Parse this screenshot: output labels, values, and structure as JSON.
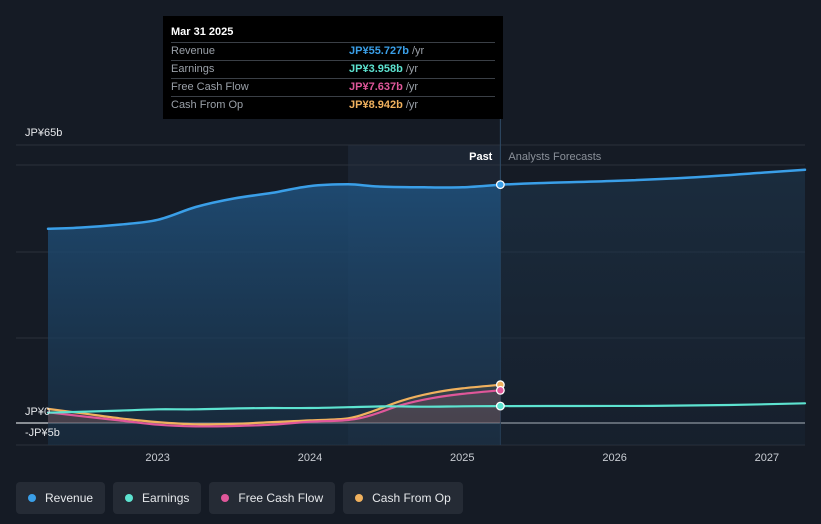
{
  "tooltip": {
    "date": "Mar 31 2025",
    "rows": [
      {
        "label": "Revenue",
        "value": "JP¥55.727b",
        "unit": "/yr",
        "color": "#3a9fe8"
      },
      {
        "label": "Earnings",
        "value": "JP¥3.958b",
        "unit": "/yr",
        "color": "#5de3d0"
      },
      {
        "label": "Free Cash Flow",
        "value": "JP¥7.637b",
        "unit": "/yr",
        "color": "#e0579a"
      },
      {
        "label": "Cash From Op",
        "value": "JP¥8.942b",
        "unit": "/yr",
        "color": "#f0b15e"
      }
    ]
  },
  "legend": [
    {
      "label": "Revenue",
      "color": "#3a9fe8"
    },
    {
      "label": "Earnings",
      "color": "#5de3d0"
    },
    {
      "label": "Free Cash Flow",
      "color": "#e0579a"
    },
    {
      "label": "Cash From Op",
      "color": "#f0b15e"
    }
  ],
  "chart_data": {
    "type": "line",
    "y_label_top": "JP¥65b",
    "y_label_zero": "JP¥0",
    "y_label_bottom": "-JP¥5b",
    "ylim": [
      -5,
      65
    ],
    "xlim": [
      2022.28,
      2027.25
    ],
    "past_label": "Past",
    "forecast_label": "Analysts Forecasts",
    "past_start": 2024.25,
    "divider_x": 2025.25,
    "x_ticks": [
      {
        "v": 2023,
        "label": "2023"
      },
      {
        "v": 2024,
        "label": "2024"
      },
      {
        "v": 2025,
        "label": "2025"
      },
      {
        "v": 2026,
        "label": "2026"
      },
      {
        "v": 2027,
        "label": "2027"
      }
    ],
    "series": [
      {
        "name": "Revenue",
        "color": "#3a9fe8",
        "fill": true,
        "points": [
          [
            2022.28,
            45.4
          ],
          [
            2022.5,
            45.7
          ],
          [
            2022.75,
            46.4
          ],
          [
            2023.0,
            47.5
          ],
          [
            2023.25,
            50.5
          ],
          [
            2023.5,
            52.5
          ],
          [
            2023.75,
            53.8
          ],
          [
            2024.0,
            55.4
          ],
          [
            2024.25,
            55.8
          ],
          [
            2024.45,
            55.3
          ],
          [
            2024.75,
            55.1
          ],
          [
            2025.0,
            55.1
          ],
          [
            2025.25,
            55.727
          ]
        ],
        "forecast": [
          [
            2025.25,
            55.727
          ],
          [
            2025.5,
            56.1
          ],
          [
            2026.0,
            56.6
          ],
          [
            2026.5,
            57.4
          ],
          [
            2027.0,
            58.6
          ],
          [
            2027.25,
            59.2
          ]
        ]
      },
      {
        "name": "Earnings",
        "color": "#5de3d0",
        "fill": false,
        "points": [
          [
            2022.28,
            2.4
          ],
          [
            2022.75,
            2.9
          ],
          [
            2023.0,
            3.2
          ],
          [
            2023.25,
            3.2
          ],
          [
            2023.5,
            3.4
          ],
          [
            2023.75,
            3.5
          ],
          [
            2024.0,
            3.5
          ],
          [
            2024.25,
            3.7
          ],
          [
            2024.5,
            3.9
          ],
          [
            2024.75,
            3.8
          ],
          [
            2025.0,
            3.9
          ],
          [
            2025.25,
            3.958
          ]
        ],
        "forecast": [
          [
            2025.25,
            3.958
          ],
          [
            2025.75,
            3.98
          ],
          [
            2026.25,
            4.0
          ],
          [
            2026.75,
            4.2
          ],
          [
            2027.25,
            4.6
          ]
        ]
      },
      {
        "name": "Free Cash Flow",
        "color": "#e0579a",
        "fill": false,
        "points": [
          [
            2022.28,
            2.5
          ],
          [
            2022.5,
            1.6
          ],
          [
            2022.75,
            0.6
          ],
          [
            2023.0,
            -0.4
          ],
          [
            2023.25,
            -0.8
          ],
          [
            2023.5,
            -0.7
          ],
          [
            2023.75,
            -0.4
          ],
          [
            2024.0,
            0.3
          ],
          [
            2024.25,
            0.7
          ],
          [
            2024.4,
            1.8
          ],
          [
            2024.6,
            4.2
          ],
          [
            2024.8,
            5.8
          ],
          [
            2025.0,
            6.8
          ],
          [
            2025.25,
            7.637
          ]
        ]
      },
      {
        "name": "Cash From Op",
        "color": "#f0b15e",
        "fill": false,
        "points": [
          [
            2022.28,
            3.3
          ],
          [
            2022.5,
            2.3
          ],
          [
            2022.75,
            1.1
          ],
          [
            2023.0,
            0.2
          ],
          [
            2023.25,
            -0.3
          ],
          [
            2023.5,
            -0.2
          ],
          [
            2023.75,
            0.2
          ],
          [
            2024.0,
            0.6
          ],
          [
            2024.25,
            1.1
          ],
          [
            2024.4,
            2.6
          ],
          [
            2024.6,
            5.2
          ],
          [
            2024.8,
            7.0
          ],
          [
            2025.0,
            8.1
          ],
          [
            2025.25,
            8.942
          ]
        ]
      }
    ]
  }
}
